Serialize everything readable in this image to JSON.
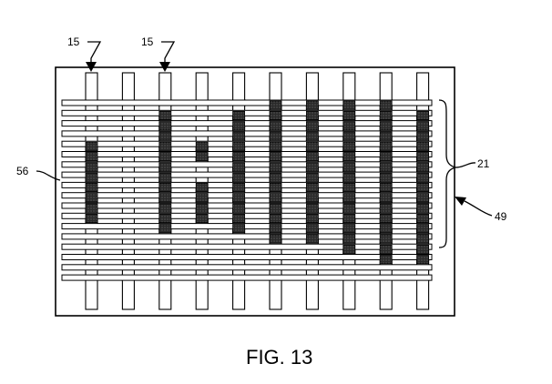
{
  "figure": {
    "caption": "FIG. 13",
    "labels": {
      "warp_left": "15",
      "warp_right": "15",
      "edge": "56",
      "bracket": "21",
      "panel": "49"
    }
  },
  "weave": {
    "warp_count": 10,
    "weft_count": 18,
    "bracket_rows": [
      0,
      12
    ],
    "dark_cells": [
      [
        0,
        4
      ],
      [
        0,
        5
      ],
      [
        0,
        6
      ],
      [
        0,
        7
      ],
      [
        0,
        8
      ],
      [
        0,
        9
      ],
      [
        0,
        10
      ],
      [
        0,
        11
      ],
      [
        2,
        1
      ],
      [
        2,
        2
      ],
      [
        2,
        3
      ],
      [
        2,
        4
      ],
      [
        2,
        5
      ],
      [
        2,
        6
      ],
      [
        2,
        7
      ],
      [
        2,
        8
      ],
      [
        2,
        9
      ],
      [
        2,
        10
      ],
      [
        2,
        11
      ],
      [
        2,
        12
      ],
      [
        3,
        4
      ],
      [
        3,
        5
      ],
      [
        3,
        8
      ],
      [
        3,
        9
      ],
      [
        3,
        10
      ],
      [
        3,
        11
      ],
      [
        4,
        1
      ],
      [
        4,
        2
      ],
      [
        4,
        3
      ],
      [
        4,
        4
      ],
      [
        4,
        5
      ],
      [
        4,
        6
      ],
      [
        4,
        7
      ],
      [
        4,
        8
      ],
      [
        4,
        9
      ],
      [
        4,
        10
      ],
      [
        4,
        11
      ],
      [
        4,
        12
      ],
      [
        5,
        0
      ],
      [
        5,
        1
      ],
      [
        5,
        2
      ],
      [
        5,
        3
      ],
      [
        5,
        4
      ],
      [
        5,
        5
      ],
      [
        5,
        6
      ],
      [
        5,
        7
      ],
      [
        5,
        8
      ],
      [
        5,
        9
      ],
      [
        5,
        10
      ],
      [
        5,
        11
      ],
      [
        5,
        12
      ],
      [
        5,
        13
      ],
      [
        6,
        0
      ],
      [
        6,
        1
      ],
      [
        6,
        2
      ],
      [
        6,
        3
      ],
      [
        6,
        4
      ],
      [
        6,
        5
      ],
      [
        6,
        6
      ],
      [
        6,
        7
      ],
      [
        6,
        8
      ],
      [
        6,
        9
      ],
      [
        6,
        10
      ],
      [
        6,
        11
      ],
      [
        6,
        12
      ],
      [
        6,
        13
      ],
      [
        7,
        0
      ],
      [
        7,
        1
      ],
      [
        7,
        2
      ],
      [
        7,
        3
      ],
      [
        7,
        4
      ],
      [
        7,
        5
      ],
      [
        7,
        6
      ],
      [
        7,
        7
      ],
      [
        7,
        8
      ],
      [
        7,
        9
      ],
      [
        7,
        10
      ],
      [
        7,
        11
      ],
      [
        7,
        12
      ],
      [
        7,
        13
      ],
      [
        7,
        14
      ],
      [
        8,
        0
      ],
      [
        8,
        1
      ],
      [
        8,
        2
      ],
      [
        8,
        3
      ],
      [
        8,
        4
      ],
      [
        8,
        5
      ],
      [
        8,
        6
      ],
      [
        8,
        7
      ],
      [
        8,
        8
      ],
      [
        8,
        9
      ],
      [
        8,
        10
      ],
      [
        8,
        11
      ],
      [
        8,
        12
      ],
      [
        8,
        13
      ],
      [
        8,
        14
      ],
      [
        8,
        15
      ],
      [
        9,
        1
      ],
      [
        9,
        2
      ],
      [
        9,
        3
      ],
      [
        9,
        4
      ],
      [
        9,
        5
      ],
      [
        9,
        6
      ],
      [
        9,
        7
      ],
      [
        9,
        8
      ],
      [
        9,
        9
      ],
      [
        9,
        10
      ],
      [
        9,
        11
      ],
      [
        9,
        12
      ],
      [
        9,
        13
      ],
      [
        9,
        14
      ],
      [
        9,
        15
      ]
    ]
  }
}
